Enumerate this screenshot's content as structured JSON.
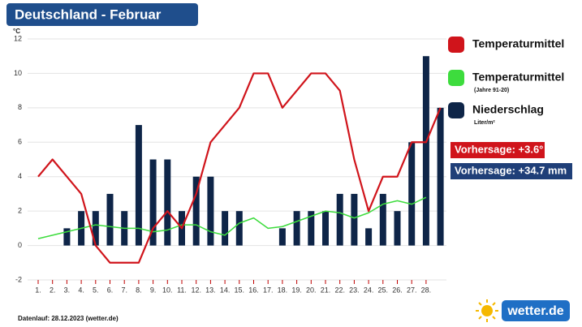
{
  "chart_data": {
    "type": "combo",
    "title": "Deutschland - Februar",
    "y_unit": "°C",
    "categories": [
      "1.",
      "2.",
      "3.",
      "4.",
      "5.",
      "6.",
      "7.",
      "8.",
      "9.",
      "10.",
      "11.",
      "12.",
      "13.",
      "14.",
      "15.",
      "16.",
      "17.",
      "18.",
      "19.",
      "20.",
      "21.",
      "22.",
      "23.",
      "24.",
      "25.",
      "26.",
      "27.",
      "28.",
      null
    ],
    "category_colors": [
      "#333",
      "#333",
      "#c00000",
      "#c00000",
      "#333",
      "#333",
      "#333",
      "#333",
      "#333",
      "#c00000",
      "#c00000",
      "#333",
      "#333",
      "#333",
      "#333",
      "#333",
      "#c00000",
      "#c00000",
      "#333",
      "#333",
      "#333",
      "#333",
      "#333",
      "#c00000",
      "#c00000",
      "#333",
      "#333",
      "#333",
      "#333"
    ],
    "series": [
      {
        "name": "Niederschlag",
        "note": "Liter/m²",
        "kind": "bar",
        "color": "#0e2548",
        "values": [
          0,
          0,
          1,
          2,
          2,
          3,
          2,
          7,
          5,
          5,
          2,
          4,
          4,
          2,
          2,
          0,
          0,
          1,
          2,
          2,
          2,
          3,
          3,
          1,
          3,
          2,
          6,
          11,
          8
        ]
      },
      {
        "name": "Temperaturmittel",
        "note": "(Jahre 91-20)",
        "kind": "line",
        "color": "#3ddc3d",
        "values": [
          0.4,
          0.6,
          0.8,
          1.0,
          1.2,
          1.1,
          1.0,
          1.0,
          0.8,
          0.9,
          1.2,
          1.2,
          0.8,
          0.6,
          1.3,
          1.6,
          1.0,
          1.1,
          1.4,
          1.7,
          2.0,
          1.9,
          1.6,
          1.9,
          2.4,
          2.6,
          2.4,
          2.8,
          null
        ]
      },
      {
        "name": "Temperaturmittel",
        "kind": "line",
        "color": "#d0141b",
        "values": [
          4,
          5,
          4,
          3,
          0,
          -1,
          -1,
          -1,
          1,
          2,
          1,
          3,
          6,
          7,
          8,
          10,
          10,
          8,
          9,
          10,
          10,
          9,
          5,
          2,
          4,
          4,
          6,
          6,
          8
        ]
      }
    ],
    "ylim": [
      -2,
      12
    ],
    "yticks": [
      -2,
      0,
      2,
      4,
      6,
      8,
      10,
      12
    ],
    "grid": true,
    "forecasts": [
      {
        "text": "Vorhersage: +3.6°",
        "color": "#d0141b"
      },
      {
        "text": "Vorhersage: +34.7 mm",
        "color": "#1f3f78"
      }
    ],
    "footer": "Datenlauf: 28.12.2023 (wetter.de)",
    "logo": "wetter.de"
  }
}
